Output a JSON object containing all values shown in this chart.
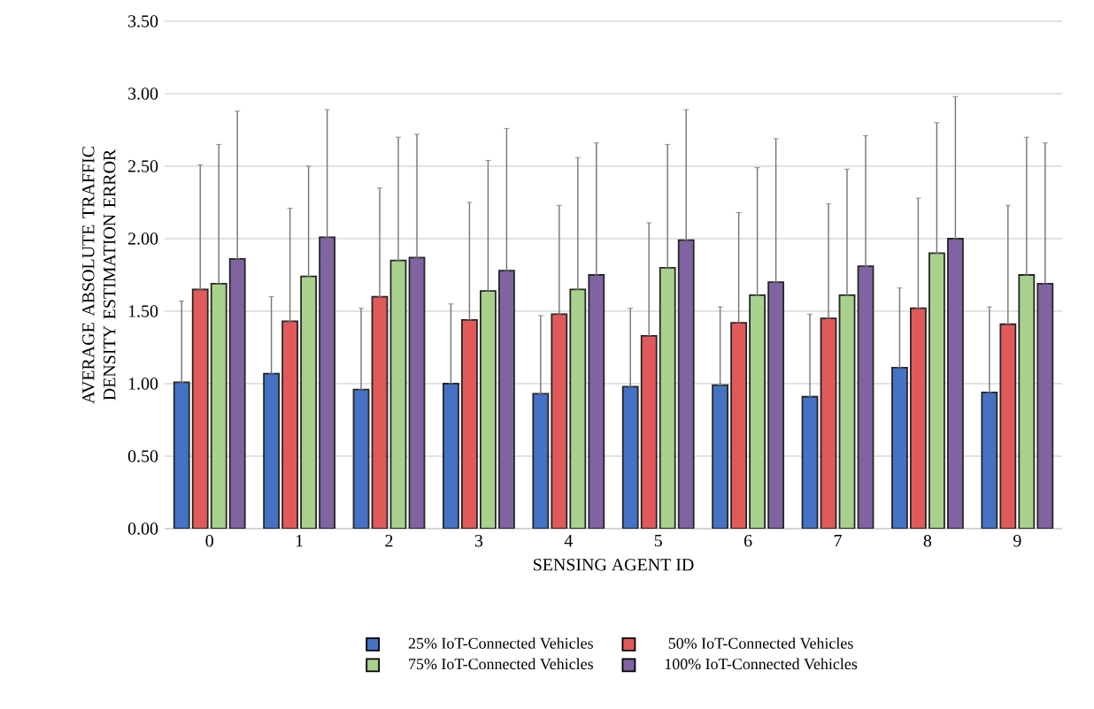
{
  "chart_data": {
    "type": "bar",
    "xlabel": "SENSING AGENT ID",
    "ylabel": "AVERAGE ABSOLUTE TRAFFIC DENSITY ESTIMATION ERROR",
    "categories": [
      "0",
      "1",
      "2",
      "3",
      "4",
      "5",
      "6",
      "7",
      "8",
      "9"
    ],
    "ylim": [
      0,
      3.5
    ],
    "yticks": [
      {
        "value": 0,
        "label": "0.00"
      },
      {
        "value": 0.5,
        "label": "0.50"
      },
      {
        "value": 1,
        "label": "1.00"
      },
      {
        "value": 1.5,
        "label": "1.50"
      },
      {
        "value": 2,
        "label": "2.00"
      },
      {
        "value": 2.5,
        "label": "2.50"
      },
      {
        "value": 3,
        "label": "3.00"
      },
      {
        "value": 3.5,
        "label": "3.50"
      }
    ],
    "grid": "y",
    "legend": "bottom",
    "series": [
      {
        "name": "25% IoT-Connected Vehicles",
        "color": "#4472c4",
        "values": [
          1.01,
          1.07,
          0.96,
          1.0,
          0.93,
          0.98,
          0.99,
          0.91,
          1.11,
          0.94
        ],
        "errors": [
          [
            1.01,
            1.57
          ],
          [
            1.07,
            1.6
          ],
          [
            0.96,
            1.52
          ],
          [
            1.0,
            1.55
          ],
          [
            0.93,
            1.47
          ],
          [
            0.98,
            1.52
          ],
          [
            0.99,
            1.53
          ],
          [
            0.91,
            1.48
          ],
          [
            1.11,
            1.66
          ],
          [
            0.94,
            1.53
          ]
        ]
      },
      {
        "name": "50% IoT-Connected Vehicles",
        "color": "#e05a5a",
        "values": [
          1.65,
          1.43,
          1.6,
          1.44,
          1.48,
          1.33,
          1.42,
          1.45,
          1.52,
          1.41
        ],
        "errors": [
          [
            1.65,
            2.51
          ],
          [
            1.43,
            2.21
          ],
          [
            1.6,
            2.35
          ],
          [
            1.44,
            2.25
          ],
          [
            1.48,
            2.23
          ],
          [
            1.33,
            2.11
          ],
          [
            1.42,
            2.18
          ],
          [
            1.45,
            2.24
          ],
          [
            1.52,
            2.28
          ],
          [
            1.41,
            2.23
          ]
        ]
      },
      {
        "name": "75% IoT-Connected Vehicles",
        "color": "#a9d18e",
        "values": [
          1.69,
          1.74,
          1.85,
          1.64,
          1.65,
          1.8,
          1.61,
          1.61,
          1.9,
          1.75
        ],
        "errors": [
          [
            1.69,
            2.65
          ],
          [
            1.74,
            2.5
          ],
          [
            1.85,
            2.7
          ],
          [
            1.64,
            2.54
          ],
          [
            1.65,
            2.56
          ],
          [
            1.8,
            2.65
          ],
          [
            1.61,
            2.49
          ],
          [
            1.61,
            2.48
          ],
          [
            1.9,
            2.8
          ],
          [
            1.75,
            2.7
          ]
        ]
      },
      {
        "name": "100% IoT-Connected Vehicles",
        "color": "#8064a2",
        "values": [
          1.86,
          2.01,
          1.87,
          1.78,
          1.75,
          1.99,
          1.7,
          1.81,
          2.0,
          1.69
        ],
        "errors": [
          [
            1.86,
            2.88
          ],
          [
            2.01,
            2.89
          ],
          [
            1.87,
            2.72
          ],
          [
            1.78,
            2.76
          ],
          [
            1.75,
            2.66
          ],
          [
            1.99,
            2.89
          ],
          [
            1.7,
            2.69
          ],
          [
            1.81,
            2.71
          ],
          [
            2.0,
            2.98
          ],
          [
            1.69,
            2.66
          ]
        ]
      }
    ]
  }
}
